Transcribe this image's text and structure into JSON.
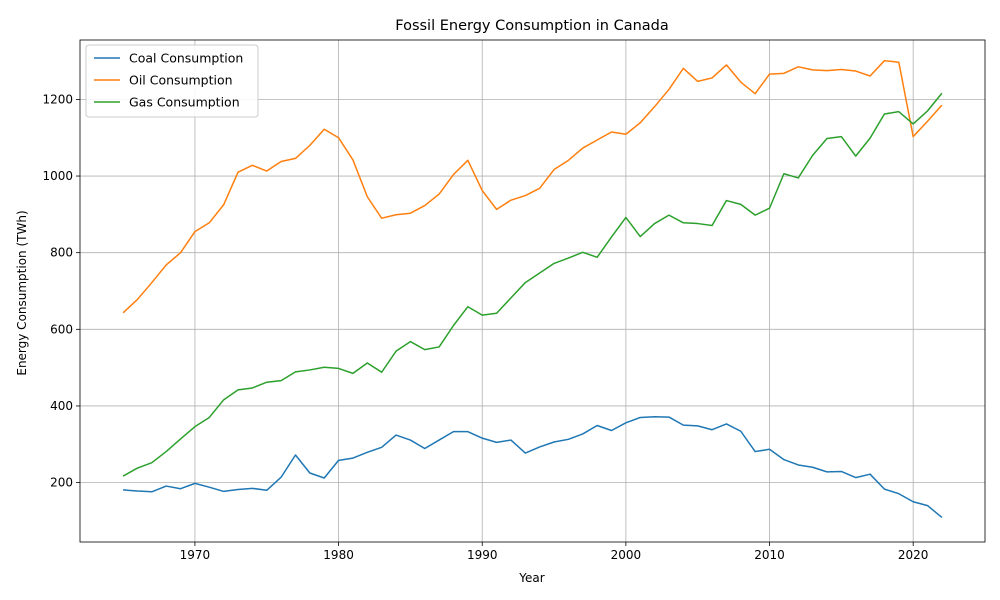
{
  "chart_data": {
    "type": "line",
    "title": "Fossil Energy Consumption in Canada",
    "xlabel": "Year",
    "ylabel": "Energy Consumption (TWh)",
    "xlim": [
      1962,
      2025
    ],
    "ylim": [
      45,
      1355
    ],
    "xticks": [
      1970,
      1980,
      1990,
      2000,
      2010,
      2020
    ],
    "yticks": [
      200,
      400,
      600,
      800,
      1000,
      1200
    ],
    "grid": true,
    "legend_position": "upper-left",
    "x": [
      1965,
      1966,
      1967,
      1968,
      1969,
      1970,
      1971,
      1972,
      1973,
      1974,
      1975,
      1976,
      1977,
      1978,
      1979,
      1980,
      1981,
      1982,
      1983,
      1984,
      1985,
      1986,
      1987,
      1988,
      1989,
      1990,
      1991,
      1992,
      1993,
      1994,
      1995,
      1996,
      1997,
      1998,
      1999,
      2000,
      2001,
      2002,
      2003,
      2004,
      2005,
      2006,
      2007,
      2008,
      2009,
      2010,
      2011,
      2012,
      2013,
      2014,
      2015,
      2016,
      2017,
      2018,
      2019,
      2020,
      2021,
      2022
    ],
    "series": [
      {
        "name": "Coal Consumption",
        "color": "#1f77b4",
        "values": [
          181,
          178,
          176,
          191,
          184,
          198,
          188,
          177,
          182,
          185,
          180,
          214,
          272,
          225,
          212,
          258,
          264,
          279,
          292,
          324,
          311,
          289,
          311,
          333,
          333,
          316,
          305,
          311,
          277,
          293,
          306,
          313,
          327,
          349,
          336,
          356,
          370,
          372,
          371,
          350,
          348,
          338,
          353,
          334,
          281,
          287,
          260,
          246,
          240,
          228,
          229,
          213,
          222,
          183,
          171,
          150,
          140,
          109
        ]
      },
      {
        "name": "Oil Consumption",
        "color": "#ff7f0e",
        "values": [
          643,
          678,
          722,
          768,
          800,
          855,
          878,
          925,
          1010,
          1028,
          1013,
          1038,
          1046,
          1080,
          1122,
          1100,
          1042,
          946,
          890,
          899,
          903,
          923,
          953,
          1004,
          1041,
          962,
          913,
          937,
          949,
          968,
          1017,
          1041,
          1073,
          1094,
          1115,
          1109,
          1139,
          1181,
          1226,
          1281,
          1247,
          1256,
          1290,
          1245,
          1215,
          1266,
          1268,
          1285,
          1277,
          1275,
          1278,
          1274,
          1261,
          1301,
          1297,
          1103,
          1143,
          1185
        ]
      },
      {
        "name": "Gas Consumption",
        "color": "#2ca02c",
        "values": [
          217,
          238,
          252,
          281,
          314,
          346,
          370,
          416,
          442,
          447,
          462,
          466,
          489,
          494,
          501,
          498,
          485,
          512,
          488,
          543,
          568,
          547,
          554,
          610,
          659,
          637,
          642,
          682,
          722,
          747,
          772,
          786,
          801,
          788,
          841,
          892,
          842,
          876,
          898,
          878,
          876,
          871,
          936,
          926,
          898,
          916,
          1006,
          995,
          1054,
          1098,
          1103,
          1052,
          1099,
          1162,
          1168,
          1136,
          1170,
          1216
        ]
      }
    ]
  }
}
